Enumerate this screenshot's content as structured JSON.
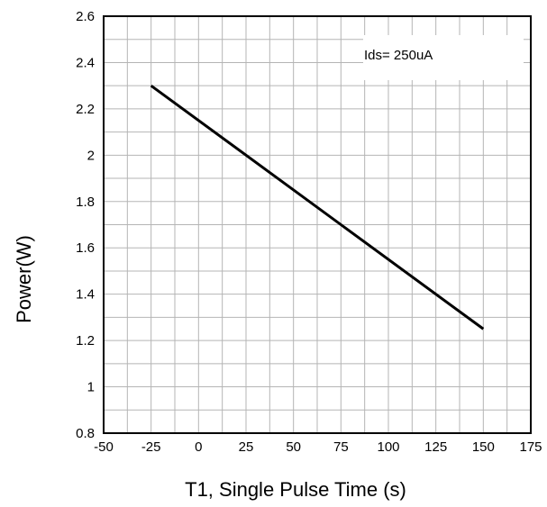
{
  "chart_data": {
    "type": "line",
    "title": "",
    "xlabel": "T1, Single Pulse Time (s)",
    "ylabel": "Power(W)",
    "xlim": [
      -50,
      175
    ],
    "ylim": [
      0.8,
      2.6
    ],
    "xticks": [
      -50,
      -25,
      0,
      25,
      50,
      75,
      100,
      125,
      150,
      175
    ],
    "yticks": [
      0.8,
      1,
      1.2,
      1.4,
      1.6,
      1.8,
      2,
      2.2,
      2.4,
      2.6
    ],
    "xtick_labels": [
      "-50",
      "-25",
      "0",
      "25",
      "50",
      "75",
      "100",
      "125",
      "150",
      "175"
    ],
    "ytick_labels": [
      "0.8",
      "1",
      "1.2",
      "1.4",
      "1.6",
      "1.8",
      "2",
      "2.2",
      "2.4",
      "2.6"
    ],
    "grid": true,
    "annotation": "Ids= 250uA",
    "series": [
      {
        "name": "",
        "color": "#000000",
        "x": [
          -25,
          150
        ],
        "y": [
          2.3,
          1.25
        ]
      }
    ]
  }
}
